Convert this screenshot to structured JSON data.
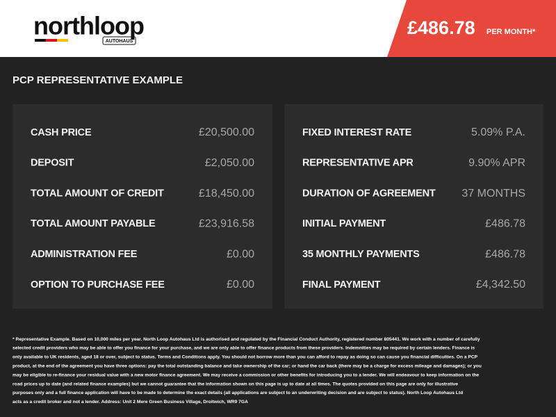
{
  "header": {
    "logo": "northloop",
    "logo_sub": "AUTOHAUS",
    "price": "£486.78",
    "price_suffix": "PER MONTH*"
  },
  "section_title": "PCP REPRESENTATIVE EXAMPLE",
  "panels": [
    {
      "rows": [
        [
          "CASH PRICE",
          "£20,500.00"
        ],
        [
          "DEPOSIT",
          "£2,050.00"
        ],
        [
          "TOTAL AMOUNT OF CREDIT",
          "£18,450.00"
        ],
        [
          "TOTAL AMOUNT PAYABLE",
          "£23,916.58"
        ],
        [
          "ADMINISTRATION FEE",
          "£0.00"
        ],
        [
          "OPTION TO PURCHASE FEE",
          "£0.00"
        ]
      ]
    },
    {
      "rows": [
        [
          "FIXED INTEREST RATE",
          "5.09% P.A."
        ],
        [
          "REPRESENTATIVE APR",
          "9.90% APR"
        ],
        [
          "DURATION OF AGREEMENT",
          "37 MONTHS"
        ],
        [
          "INITIAL PAYMENT",
          "£486.78"
        ],
        [
          "35 MONTHLY PAYMENTS",
          "£486.78"
        ],
        [
          "FINAL PAYMENT",
          "£4,342.50"
        ]
      ]
    }
  ],
  "disclaimer": [
    "* Representative Example. Based on 10,000 miles per year. North Loop Autohaus Ltd is authorised and regulated by the Financial Conduct Authority, registered number 805441. We work with a number of carefully",
    "selected credit providers who may be able to offer you finance for your purchase, and we are only able to offer finance products from these providers. Indemnities may be required by certain lenders. Finance is",
    "only available to UK residents, aged 18 or over, subject to status. Terms and Conditions apply. You should not borrow more than you can afford to repay as doing so can cause you financial difficulties. On a PCP",
    "product, at the end of the agreement you have three options: pay the total outstanding balance and take ownership of the car; or hand the car back (there may be a charge for excess mileage and damages); or you",
    "may be eligible to re-finance your residual value with a new motor finance agreement. We may receive a commission or other benefits for introducing you to a lender. We will endeavour to keep information on the",
    "road prices up to date (and related finance examples) but we cannot guarantee that the information shown on this page is up to date at all times. The quotes provided on this page are only for illustrative",
    "purposes only and a full finance application will have to be made to determine the exact details (all applications are subject to an underwriting decision and are subject to status). North Loop Autohaus Ltd",
    "acts as a credit broker and not a lender. Address: Unit 2 Mere Green Business Village, Droitwich, WR9 7GA"
  ]
}
